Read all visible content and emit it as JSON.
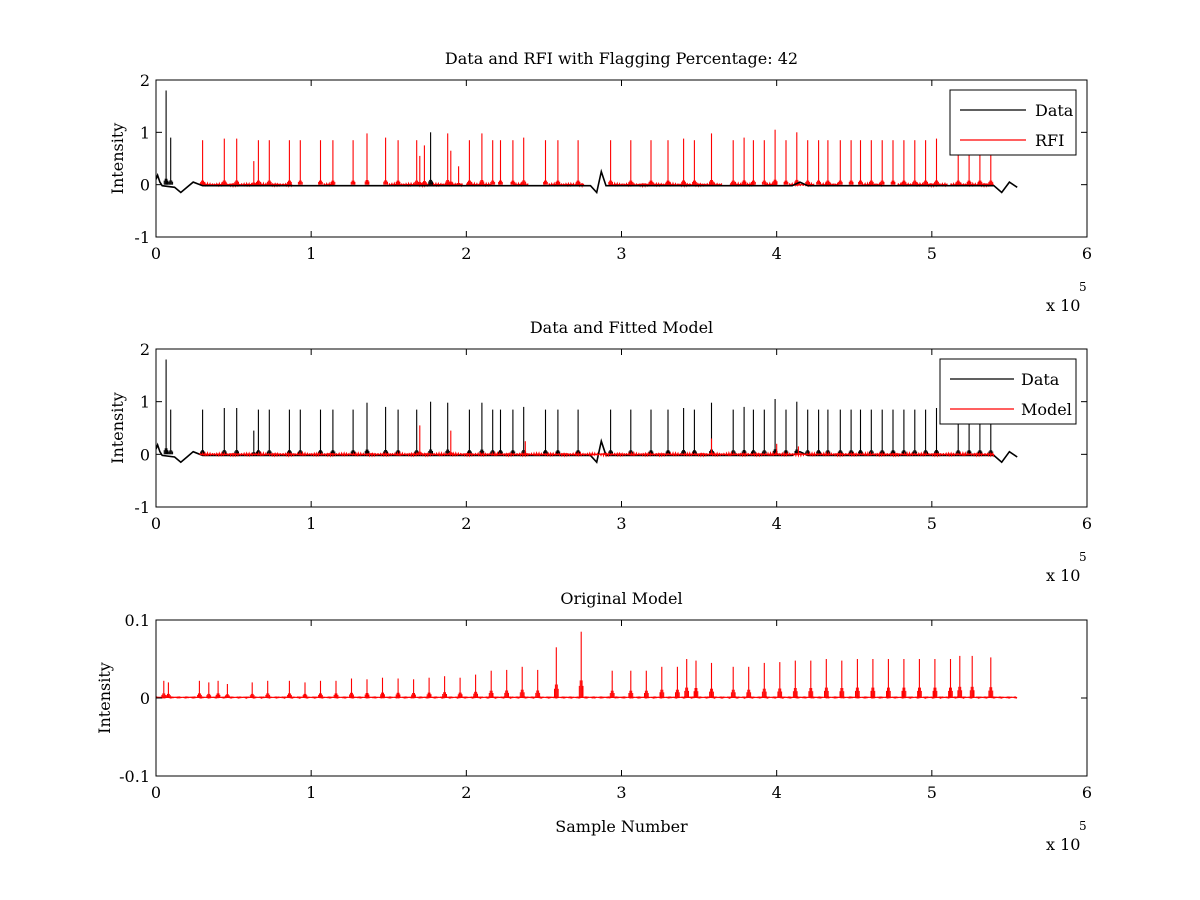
{
  "figure": {
    "background": "#ffffff"
  },
  "chart_data": [
    {
      "type": "line",
      "title": "Data and RFI with Flagging Percentage: 42",
      "xlabel": "",
      "ylabel": "Intensity",
      "xlim": [
        0,
        6
      ],
      "ylim": [
        -1,
        2
      ],
      "xticks": [
        "0",
        "1",
        "2",
        "3",
        "4",
        "5",
        "6"
      ],
      "yticks": [
        "-1",
        "0",
        "1",
        "2"
      ],
      "x_exponent": {
        "base": "x 10",
        "power": "5"
      },
      "legend": {
        "position": "top-right",
        "entries": [
          "Data",
          "RFI"
        ]
      },
      "series": [
        {
          "name": "Data",
          "color": "#000000",
          "baseline": [
            [
              0.0,
              0.1
            ],
            [
              0.01,
              0.18
            ],
            [
              0.025,
              0.05
            ],
            [
              0.04,
              -0.02
            ],
            [
              0.12,
              -0.05
            ],
            [
              0.16,
              -0.15
            ],
            [
              0.2,
              -0.05
            ],
            [
              0.24,
              0.05
            ],
            [
              0.3,
              -0.02
            ],
            [
              1.0,
              -0.02
            ],
            [
              2.8,
              -0.02
            ],
            [
              2.84,
              -0.15
            ],
            [
              2.87,
              0.25
            ],
            [
              2.9,
              -0.02
            ],
            [
              4.1,
              -0.02
            ],
            [
              4.15,
              0.05
            ],
            [
              4.2,
              -0.02
            ],
            [
              5.4,
              -0.02
            ],
            [
              5.45,
              -0.15
            ],
            [
              5.5,
              0.05
            ],
            [
              5.55,
              -0.05
            ]
          ],
          "spikes": [
            [
              0.065,
              1.8
            ],
            [
              0.095,
              0.9
            ],
            [
              1.77,
              1.0
            ]
          ]
        },
        {
          "name": "RFI",
          "color": "#ff0000",
          "spikes": [
            [
              0.3,
              0.85
            ],
            [
              0.44,
              0.88
            ],
            [
              0.52,
              0.88
            ],
            [
              0.63,
              0.45
            ],
            [
              0.66,
              0.85
            ],
            [
              0.73,
              0.85
            ],
            [
              0.86,
              0.85
            ],
            [
              0.93,
              0.85
            ],
            [
              1.06,
              0.85
            ],
            [
              1.14,
              0.85
            ],
            [
              1.27,
              0.85
            ],
            [
              1.36,
              0.98
            ],
            [
              1.48,
              0.9
            ],
            [
              1.56,
              0.85
            ],
            [
              1.68,
              0.85
            ],
            [
              1.7,
              0.55
            ],
            [
              1.73,
              0.75
            ],
            [
              1.88,
              0.98
            ],
            [
              1.9,
              0.65
            ],
            [
              1.95,
              0.35
            ],
            [
              2.02,
              0.85
            ],
            [
              2.1,
              0.98
            ],
            [
              2.17,
              0.85
            ],
            [
              2.22,
              0.85
            ],
            [
              2.3,
              0.85
            ],
            [
              2.37,
              0.9
            ],
            [
              2.51,
              0.85
            ],
            [
              2.59,
              0.85
            ],
            [
              2.72,
              0.85
            ],
            [
              2.93,
              0.85
            ],
            [
              3.06,
              0.85
            ],
            [
              3.19,
              0.85
            ],
            [
              3.3,
              0.85
            ],
            [
              3.4,
              0.88
            ],
            [
              3.47,
              0.85
            ],
            [
              3.58,
              0.98
            ],
            [
              3.72,
              0.85
            ],
            [
              3.79,
              0.9
            ],
            [
              3.85,
              0.85
            ],
            [
              3.92,
              0.85
            ],
            [
              3.99,
              1.05
            ],
            [
              4.06,
              0.85
            ],
            [
              4.13,
              1.0
            ],
            [
              4.2,
              0.85
            ],
            [
              4.27,
              0.85
            ],
            [
              4.33,
              0.85
            ],
            [
              4.41,
              0.85
            ],
            [
              4.48,
              0.85
            ],
            [
              4.54,
              0.85
            ],
            [
              4.61,
              0.85
            ],
            [
              4.68,
              0.85
            ],
            [
              4.75,
              0.85
            ],
            [
              4.82,
              0.85
            ],
            [
              4.89,
              0.85
            ],
            [
              4.96,
              0.85
            ],
            [
              5.03,
              0.88
            ],
            [
              5.17,
              0.85
            ],
            [
              5.24,
              0.85
            ],
            [
              5.31,
              0.85
            ],
            [
              5.38,
              0.85
            ]
          ],
          "segments": [
            [
              0.28,
              0.88
            ],
            [
              1.08,
              1.15
            ],
            [
              1.5,
              1.98
            ],
            [
              2.0,
              2.16
            ],
            [
              2.3,
              2.4
            ],
            [
              2.53,
              2.76
            ],
            [
              2.92,
              3.65
            ],
            [
              3.7,
              3.86
            ],
            [
              3.92,
              4.0
            ],
            [
              4.08,
              4.24
            ],
            [
              4.28,
              4.4
            ],
            [
              4.55,
              4.68
            ],
            [
              4.78,
              5.1
            ],
            [
              5.12,
              5.4
            ]
          ]
        }
      ]
    },
    {
      "type": "line",
      "title": "Data and Fitted Model",
      "xlabel": "",
      "ylabel": "Intensity",
      "xlim": [
        0,
        6
      ],
      "ylim": [
        -1,
        2
      ],
      "xticks": [
        "0",
        "1",
        "2",
        "3",
        "4",
        "5",
        "6"
      ],
      "yticks": [
        "-1",
        "0",
        "1",
        "2"
      ],
      "x_exponent": {
        "base": "x 10",
        "power": "5"
      },
      "legend": {
        "position": "top-right",
        "entries": [
          "Data",
          "Model"
        ]
      },
      "series": [
        {
          "name": "Data",
          "color": "#000000",
          "baseline": [
            [
              0.0,
              0.1
            ],
            [
              0.01,
              0.18
            ],
            [
              0.025,
              0.05
            ],
            [
              0.04,
              -0.02
            ],
            [
              0.12,
              -0.05
            ],
            [
              0.16,
              -0.15
            ],
            [
              0.2,
              -0.05
            ],
            [
              0.24,
              0.05
            ],
            [
              0.3,
              -0.02
            ],
            [
              1.0,
              -0.02
            ],
            [
              2.8,
              -0.02
            ],
            [
              2.84,
              -0.15
            ],
            [
              2.87,
              0.25
            ],
            [
              2.9,
              -0.02
            ],
            [
              4.1,
              -0.02
            ],
            [
              4.15,
              0.05
            ],
            [
              4.2,
              -0.02
            ],
            [
              5.4,
              -0.02
            ],
            [
              5.45,
              -0.15
            ],
            [
              5.5,
              0.05
            ],
            [
              5.55,
              -0.05
            ]
          ],
          "spikes": [
            [
              0.065,
              1.8
            ],
            [
              0.095,
              0.85
            ],
            [
              0.3,
              0.85
            ],
            [
              0.44,
              0.88
            ],
            [
              0.52,
              0.88
            ],
            [
              0.63,
              0.45
            ],
            [
              0.66,
              0.85
            ],
            [
              0.73,
              0.85
            ],
            [
              0.86,
              0.85
            ],
            [
              0.93,
              0.85
            ],
            [
              1.06,
              0.85
            ],
            [
              1.14,
              0.85
            ],
            [
              1.27,
              0.85
            ],
            [
              1.36,
              0.98
            ],
            [
              1.48,
              0.9
            ],
            [
              1.56,
              0.85
            ],
            [
              1.68,
              0.85
            ],
            [
              1.77,
              1.0
            ],
            [
              1.88,
              0.98
            ],
            [
              2.02,
              0.85
            ],
            [
              2.1,
              0.98
            ],
            [
              2.17,
              0.85
            ],
            [
              2.22,
              0.85
            ],
            [
              2.3,
              0.85
            ],
            [
              2.37,
              0.9
            ],
            [
              2.51,
              0.85
            ],
            [
              2.59,
              0.85
            ],
            [
              2.72,
              0.85
            ],
            [
              2.93,
              0.85
            ],
            [
              3.06,
              0.85
            ],
            [
              3.19,
              0.85
            ],
            [
              3.3,
              0.85
            ],
            [
              3.4,
              0.88
            ],
            [
              3.47,
              0.85
            ],
            [
              3.58,
              0.98
            ],
            [
              3.72,
              0.85
            ],
            [
              3.79,
              0.9
            ],
            [
              3.85,
              0.85
            ],
            [
              3.92,
              0.85
            ],
            [
              3.99,
              1.05
            ],
            [
              4.06,
              0.85
            ],
            [
              4.13,
              1.0
            ],
            [
              4.2,
              0.85
            ],
            [
              4.27,
              0.85
            ],
            [
              4.33,
              0.85
            ],
            [
              4.41,
              0.85
            ],
            [
              4.48,
              0.85
            ],
            [
              4.54,
              0.85
            ],
            [
              4.61,
              0.85
            ],
            [
              4.68,
              0.85
            ],
            [
              4.75,
              0.85
            ],
            [
              4.82,
              0.85
            ],
            [
              4.89,
              0.85
            ],
            [
              4.96,
              0.85
            ],
            [
              5.03,
              0.88
            ],
            [
              5.17,
              0.85
            ],
            [
              5.24,
              0.85
            ],
            [
              5.31,
              0.85
            ],
            [
              5.38,
              0.85
            ]
          ]
        },
        {
          "name": "Model",
          "color": "#ff0000",
          "spikes": [
            [
              1.7,
              0.55
            ],
            [
              1.9,
              0.45
            ],
            [
              2.38,
              0.25
            ],
            [
              3.58,
              0.3
            ],
            [
              4.0,
              0.2
            ],
            [
              4.14,
              0.15
            ]
          ],
          "segments": [
            [
              0.28,
              5.4
            ]
          ]
        }
      ]
    },
    {
      "type": "line",
      "title": "Original Model",
      "xlabel": "Sample Number",
      "ylabel": "Intensity",
      "xlim": [
        0,
        6
      ],
      "ylim": [
        -0.1,
        0.1
      ],
      "xticks": [
        "0",
        "1",
        "2",
        "3",
        "4",
        "5",
        "6"
      ],
      "yticks": [
        "-0.1",
        "0",
        "0.1"
      ],
      "x_exponent": {
        "base": "x 10",
        "power": "5"
      },
      "series": [
        {
          "color": "#ff0000",
          "spikes": [
            [
              0.05,
              0.022
            ],
            [
              0.08,
              0.02
            ],
            [
              0.28,
              0.022
            ],
            [
              0.34,
              0.02
            ],
            [
              0.4,
              0.022
            ],
            [
              0.46,
              0.018
            ],
            [
              0.62,
              0.02
            ],
            [
              0.72,
              0.022
            ],
            [
              0.86,
              0.022
            ],
            [
              0.96,
              0.02
            ],
            [
              1.06,
              0.022
            ],
            [
              1.16,
              0.022
            ],
            [
              1.26,
              0.025
            ],
            [
              1.36,
              0.024
            ],
            [
              1.46,
              0.026
            ],
            [
              1.56,
              0.025
            ],
            [
              1.66,
              0.024
            ],
            [
              1.76,
              0.026
            ],
            [
              1.86,
              0.028
            ],
            [
              1.96,
              0.026
            ],
            [
              2.06,
              0.03
            ],
            [
              2.16,
              0.035
            ],
            [
              2.26,
              0.036
            ],
            [
              2.36,
              0.04
            ],
            [
              2.46,
              0.036
            ],
            [
              2.58,
              0.065
            ],
            [
              2.74,
              0.085
            ],
            [
              2.94,
              0.035
            ],
            [
              3.06,
              0.035
            ],
            [
              3.16,
              0.035
            ],
            [
              3.26,
              0.04
            ],
            [
              3.36,
              0.04
            ],
            [
              3.42,
              0.05
            ],
            [
              3.48,
              0.048
            ],
            [
              3.58,
              0.045
            ],
            [
              3.72,
              0.04
            ],
            [
              3.82,
              0.04
            ],
            [
              3.92,
              0.045
            ],
            [
              4.02,
              0.046
            ],
            [
              4.12,
              0.048
            ],
            [
              4.22,
              0.048
            ],
            [
              4.32,
              0.05
            ],
            [
              4.42,
              0.048
            ],
            [
              4.52,
              0.05
            ],
            [
              4.62,
              0.05
            ],
            [
              4.72,
              0.05
            ],
            [
              4.82,
              0.05
            ],
            [
              4.92,
              0.05
            ],
            [
              5.02,
              0.05
            ],
            [
              5.12,
              0.05
            ],
            [
              5.18,
              0.054
            ],
            [
              5.26,
              0.054
            ],
            [
              5.38,
              0.052
            ]
          ],
          "segments": [
            [
              0.0,
              5.55
            ]
          ]
        }
      ]
    }
  ]
}
